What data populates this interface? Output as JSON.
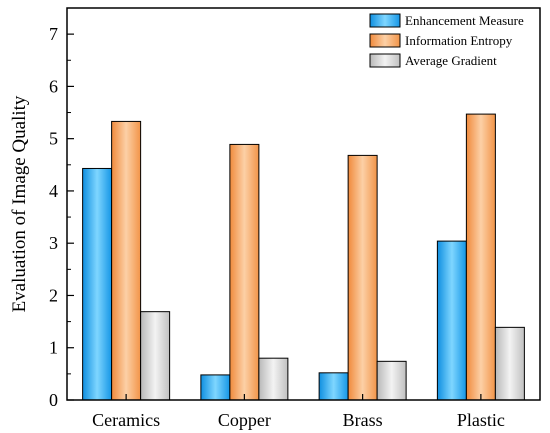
{
  "chart_data": {
    "type": "bar",
    "title": "",
    "xlabel": "",
    "ylabel": "Evaluation of Image Quality",
    "ylim": [
      0,
      7.5
    ],
    "yticks": [
      0,
      1,
      2,
      3,
      4,
      5,
      6,
      7
    ],
    "categories": [
      "Ceramics",
      "Copper",
      "Brass",
      "Plastic"
    ],
    "series": [
      {
        "name": "Enhancement Measure",
        "values": [
          4.43,
          0.48,
          0.52,
          3.04
        ],
        "color": "#2fa8ea"
      },
      {
        "name": "Information Entropy",
        "values": [
          5.33,
          4.89,
          4.68,
          5.47
        ],
        "color": "#f0a060"
      },
      {
        "name": "Average Gradient",
        "values": [
          1.69,
          0.8,
          0.74,
          1.39
        ],
        "color": "#cfcfcf"
      }
    ],
    "legend_position": "top-right",
    "grid": false
  }
}
